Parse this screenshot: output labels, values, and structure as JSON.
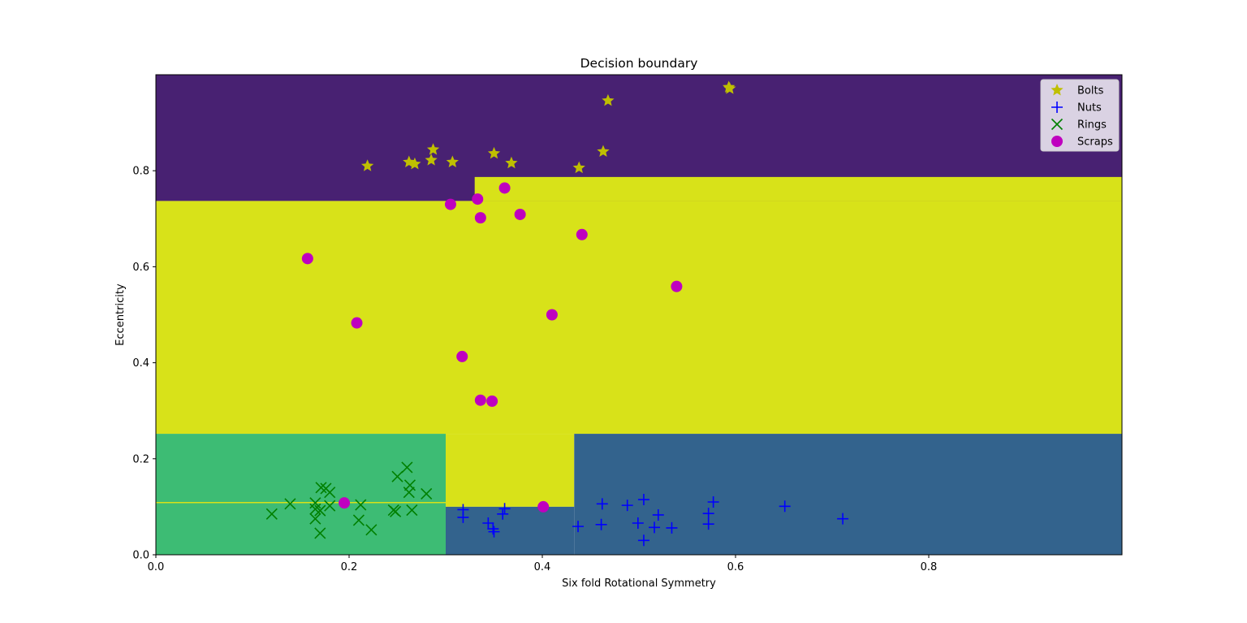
{
  "chart_data": {
    "type": "scatter",
    "title": "Decision boundary",
    "xlabel": "Six fold Rotational Symmetry",
    "ylabel": "Eccentricity",
    "xlim": [
      0.0,
      1.0
    ],
    "ylim": [
      0.0,
      1.0
    ],
    "xticks": [
      0.0,
      0.2,
      0.4,
      0.6,
      0.8
    ],
    "yticks": [
      0.0,
      0.2,
      0.4,
      0.6,
      0.8
    ],
    "xtick_labels": [
      "0.0",
      "0.2",
      "0.4",
      "0.6",
      "0.8"
    ],
    "ytick_labels": [
      "0.0",
      "0.2",
      "0.4",
      "0.6",
      "0.8"
    ],
    "grid": false,
    "legend_position": "top-right",
    "decision_regions": [
      {
        "class": "Bolts",
        "color": "#482172",
        "x": [
          0.0,
          1.0
        ],
        "y": [
          0.737,
          1.0
        ]
      },
      {
        "class": "Scraps",
        "color": "#d8e219",
        "x": [
          0.0,
          1.0
        ],
        "y": [
          0.252,
          0.737
        ]
      },
      {
        "class": "Scraps",
        "color": "#d8e219",
        "x": [
          0.33,
          1.0
        ],
        "y": [
          0.787,
          0.737
        ]
      },
      {
        "class": "Rings",
        "color": "#3dbc74",
        "x": [
          0.0,
          0.3
        ],
        "y": [
          0.0,
          0.252
        ]
      },
      {
        "class": "Scraps",
        "color": "#d8e219",
        "x": [
          0.3,
          0.433
        ],
        "y": [
          0.1,
          0.252
        ]
      },
      {
        "class": "Nuts",
        "color": "#33638d",
        "x": [
          0.3,
          0.433
        ],
        "y": [
          0.0,
          0.1
        ]
      },
      {
        "class": "Nuts",
        "color": "#33638d",
        "x": [
          0.433,
          1.0
        ],
        "y": [
          0.0,
          0.252
        ]
      },
      {
        "class": "Scraps",
        "color": "#d8e219",
        "x": [
          0.0,
          0.3
        ],
        "y": [
          0.108,
          0.11
        ]
      }
    ],
    "series": [
      {
        "name": "Bolts",
        "marker": "star",
        "color": "#bfbf00",
        "points": [
          [
            0.219,
            0.81
          ],
          [
            0.262,
            0.818
          ],
          [
            0.268,
            0.814
          ],
          [
            0.285,
            0.822
          ],
          [
            0.287,
            0.844
          ],
          [
            0.307,
            0.818
          ],
          [
            0.35,
            0.836
          ],
          [
            0.368,
            0.816
          ],
          [
            0.438,
            0.806
          ],
          [
            0.463,
            0.84
          ],
          [
            0.468,
            0.946
          ],
          [
            0.593,
            0.974
          ],
          [
            0.594,
            0.971
          ]
        ]
      },
      {
        "name": "Nuts",
        "marker": "plus",
        "color": "#0000ff",
        "points": [
          [
            0.318,
            0.094
          ],
          [
            0.318,
            0.078
          ],
          [
            0.344,
            0.066
          ],
          [
            0.349,
            0.054
          ],
          [
            0.35,
            0.048
          ],
          [
            0.359,
            0.085
          ],
          [
            0.361,
            0.096
          ],
          [
            0.437,
            0.059
          ],
          [
            0.461,
            0.063
          ],
          [
            0.462,
            0.106
          ],
          [
            0.488,
            0.103
          ],
          [
            0.499,
            0.066
          ],
          [
            0.505,
            0.115
          ],
          [
            0.505,
            0.03
          ],
          [
            0.516,
            0.057
          ],
          [
            0.52,
            0.083
          ],
          [
            0.534,
            0.056
          ],
          [
            0.572,
            0.086
          ],
          [
            0.572,
            0.064
          ],
          [
            0.577,
            0.11
          ],
          [
            0.651,
            0.101
          ],
          [
            0.711,
            0.075
          ]
        ]
      },
      {
        "name": "Rings",
        "marker": "x",
        "color": "#008000",
        "points": [
          [
            0.12,
            0.085
          ],
          [
            0.139,
            0.106
          ],
          [
            0.165,
            0.108
          ],
          [
            0.165,
            0.095
          ],
          [
            0.165,
            0.075
          ],
          [
            0.17,
            0.092
          ],
          [
            0.17,
            0.045
          ],
          [
            0.171,
            0.14
          ],
          [
            0.176,
            0.138
          ],
          [
            0.18,
            0.13
          ],
          [
            0.18,
            0.102
          ],
          [
            0.21,
            0.072
          ],
          [
            0.212,
            0.104
          ],
          [
            0.223,
            0.052
          ],
          [
            0.246,
            0.093
          ],
          [
            0.248,
            0.09
          ],
          [
            0.25,
            0.163
          ],
          [
            0.26,
            0.182
          ],
          [
            0.262,
            0.13
          ],
          [
            0.263,
            0.145
          ],
          [
            0.265,
            0.093
          ],
          [
            0.28,
            0.127
          ]
        ]
      },
      {
        "name": "Scraps",
        "marker": "circle",
        "color": "#bf00bf",
        "points": [
          [
            0.157,
            0.617
          ],
          [
            0.195,
            0.108
          ],
          [
            0.208,
            0.483
          ],
          [
            0.305,
            0.73
          ],
          [
            0.317,
            0.413
          ],
          [
            0.333,
            0.741
          ],
          [
            0.336,
            0.702
          ],
          [
            0.336,
            0.322
          ],
          [
            0.348,
            0.32
          ],
          [
            0.361,
            0.764
          ],
          [
            0.377,
            0.709
          ],
          [
            0.401,
            0.1
          ],
          [
            0.41,
            0.5
          ],
          [
            0.441,
            0.667
          ],
          [
            0.539,
            0.559
          ]
        ]
      }
    ]
  }
}
